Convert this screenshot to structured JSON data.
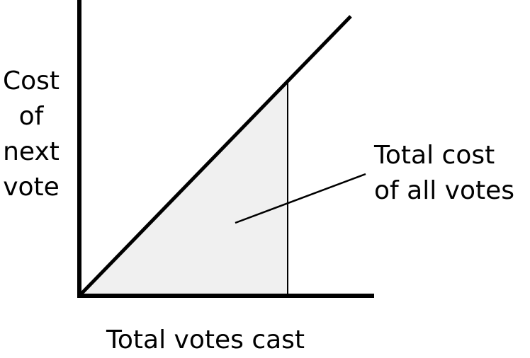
{
  "diagram": {
    "y_axis_label_lines": [
      "Cost",
      "of",
      "next",
      "vote"
    ],
    "x_axis_label": "Total votes cast",
    "annotation_lines": [
      "Total cost",
      "of all votes"
    ],
    "colors": {
      "line": "#000000",
      "shaded_area": "#f0f0f0",
      "background": "#ffffff"
    }
  }
}
